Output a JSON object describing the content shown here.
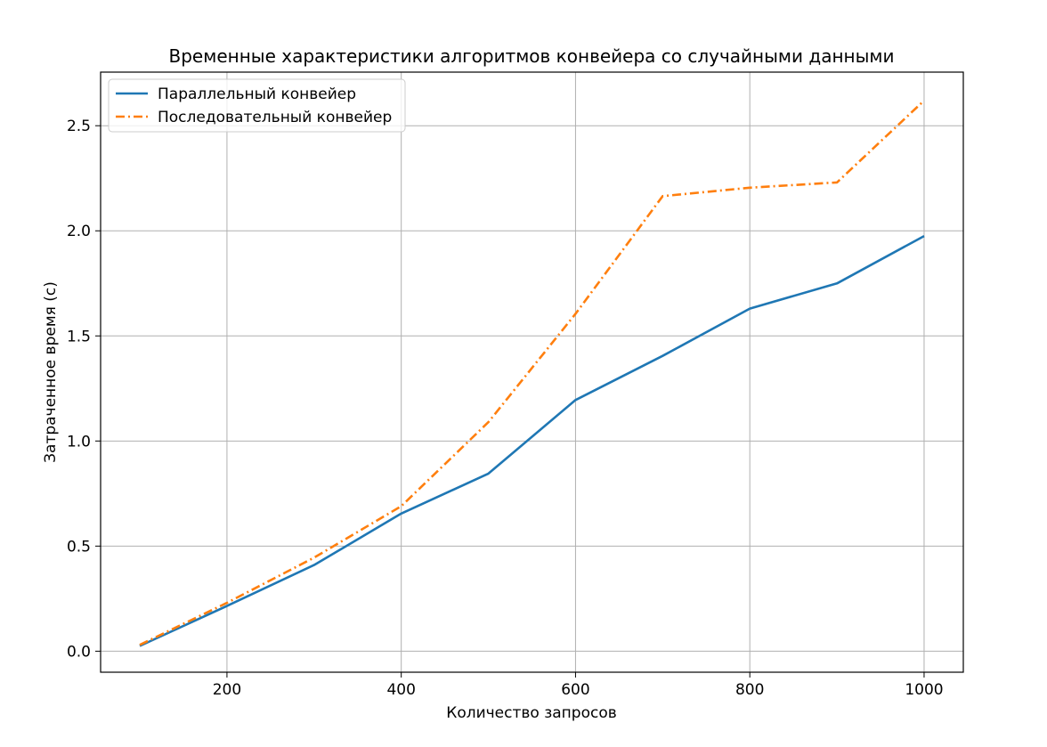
{
  "chart_data": {
    "type": "line",
    "title": "Временные характеристики алгоритмов конвейера со случайными данными",
    "xlabel": "Количество запросов",
    "ylabel": "Затраченное время (с)",
    "x": [
      100,
      200,
      300,
      400,
      500,
      600,
      700,
      800,
      900,
      1000
    ],
    "xlim": [
      55,
      1045
    ],
    "ylim": [
      -0.1,
      2.755
    ],
    "xticks": [
      200,
      400,
      600,
      800,
      1000
    ],
    "yticks": [
      0.0,
      0.5,
      1.0,
      1.5,
      2.0,
      2.5
    ],
    "xtick_labels": [
      "200",
      "400",
      "600",
      "800",
      "1000"
    ],
    "ytick_labels": [
      "0.0",
      "0.5",
      "1.0",
      "1.5",
      "2.0",
      "2.5"
    ],
    "grid": true,
    "legend_position": "upper-left",
    "series": [
      {
        "name": "Параллельный конвейер",
        "values": [
          0.025,
          0.215,
          0.41,
          0.655,
          0.845,
          1.195,
          1.405,
          1.63,
          1.75,
          1.975
        ],
        "color": "#1f77b4",
        "line_style": "solid"
      },
      {
        "name": "Последовательный конвейер",
        "values": [
          0.03,
          0.23,
          0.445,
          0.69,
          1.09,
          1.605,
          2.165,
          2.205,
          2.23,
          2.62
        ],
        "color": "#ff7f0e",
        "line_style": "dashdot"
      }
    ]
  }
}
